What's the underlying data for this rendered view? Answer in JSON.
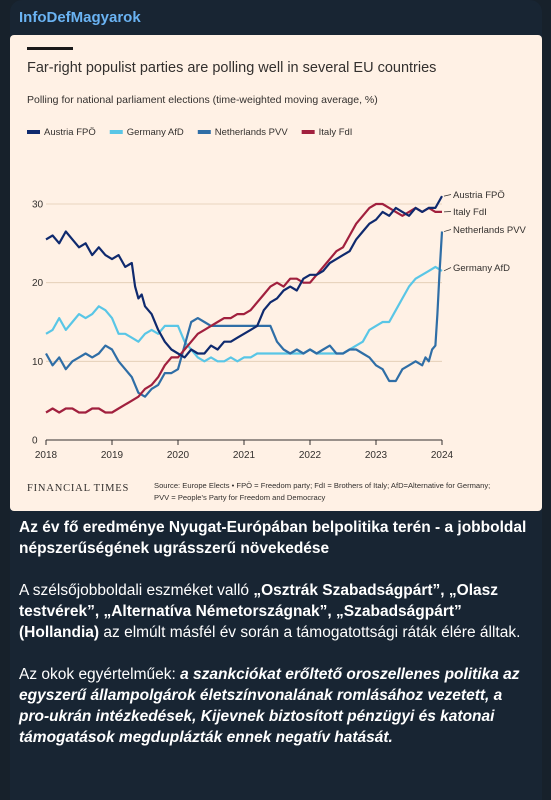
{
  "post": {
    "channel_name": "InfoDefMagyarok",
    "headline": "Az év fő eredménye Nyugat-Európában belpolitika terén - a jobboldal népszerűségének ugrásszerű növekedése",
    "p1_pre": "A szélsőjobboldali eszméket valló ",
    "p1_bold": "„Osztrák Szabadságpárt”, „Olasz testvérek”, „Alternatíva Németországnak”, „Szabadságpárt” (Hollandia)",
    "p1_post": " az elmúlt másfél év során a támogatottsági ráták élére álltak.",
    "p2_pre": "Az okok egyértelműek: ",
    "p2_italic": "a szankciókat erőltető oroszellenes politika az egyszerű állampolgárok életszínvonalának romlásához vezetett, a pro-ukrán intézkedések, Kijevnek biztosított pénzügyi és katonai támogatások megduplázták ennek negatív hatását."
  },
  "chart_data": {
    "type": "line",
    "title": "Far-right populist parties are polling well in several EU countries",
    "subtitle": "Polling for national parliament elections (time-weighted moving average, %)",
    "source_brand": "FINANCIAL TIMES",
    "source_line1": "Source: Europe Elects • FPÖ = Freedom party; FdI = Brothers of Italy; AfD=Alternative for Germany;",
    "source_line2": "PVV = People's Party for Freedom and Democracy",
    "x_ticks": [
      "2018",
      "2019",
      "2020",
      "2021",
      "2022",
      "2023",
      "2024"
    ],
    "y_ticks": [
      0,
      10,
      20,
      30
    ],
    "xlim": [
      2018,
      2024
    ],
    "ylim": [
      0,
      30
    ],
    "grid": true,
    "legend_position": "top-left",
    "series": [
      {
        "name": "Austria FPÖ",
        "end_label": "Austria FPÖ",
        "color": "#0f2a6e",
        "x": [
          2018.0,
          2018.1,
          2018.2,
          2018.3,
          2018.4,
          2018.5,
          2018.6,
          2018.7,
          2018.8,
          2018.9,
          2019.0,
          2019.1,
          2019.2,
          2019.3,
          2019.35,
          2019.4,
          2019.45,
          2019.5,
          2019.6,
          2019.7,
          2019.8,
          2019.9,
          2020.0,
          2020.1,
          2020.2,
          2020.3,
          2020.4,
          2020.5,
          2020.6,
          2020.7,
          2020.8,
          2020.9,
          2021.0,
          2021.1,
          2021.2,
          2021.3,
          2021.4,
          2021.5,
          2021.6,
          2021.7,
          2021.8,
          2021.9,
          2022.0,
          2022.1,
          2022.2,
          2022.3,
          2022.4,
          2022.5,
          2022.6,
          2022.7,
          2022.8,
          2022.9,
          2023.0,
          2023.1,
          2023.2,
          2023.3,
          2023.4,
          2023.5,
          2023.6,
          2023.7,
          2023.8,
          2023.9,
          2024.0
        ],
        "y": [
          25.5,
          26.0,
          25.0,
          26.5,
          25.5,
          24.5,
          25.0,
          23.5,
          24.5,
          23.5,
          23.0,
          23.5,
          22.0,
          22.5,
          19.5,
          18.0,
          18.5,
          17.0,
          16.0,
          14.0,
          12.5,
          11.5,
          11.0,
          10.5,
          11.5,
          11.0,
          11.0,
          12.0,
          11.5,
          12.5,
          12.5,
          13.0,
          13.5,
          14.0,
          14.5,
          16.5,
          17.5,
          18.0,
          19.0,
          19.5,
          19.0,
          20.5,
          21.0,
          21.0,
          21.5,
          22.5,
          23.0,
          23.5,
          24.0,
          25.5,
          26.5,
          27.5,
          28.0,
          29.0,
          28.5,
          29.5,
          29.0,
          28.5,
          29.5,
          29.0,
          29.5,
          29.5,
          31.0
        ]
      },
      {
        "name": "Germany AfD",
        "end_label": "Germany AfD",
        "color": "#59c6e6",
        "x": [
          2018.0,
          2018.1,
          2018.2,
          2018.3,
          2018.4,
          2018.5,
          2018.6,
          2018.7,
          2018.8,
          2018.9,
          2019.0,
          2019.1,
          2019.2,
          2019.3,
          2019.4,
          2019.5,
          2019.6,
          2019.7,
          2019.8,
          2019.9,
          2020.0,
          2020.1,
          2020.2,
          2020.3,
          2020.4,
          2020.5,
          2020.6,
          2020.7,
          2020.8,
          2020.9,
          2021.0,
          2021.1,
          2021.2,
          2021.3,
          2021.4,
          2021.5,
          2021.6,
          2021.7,
          2021.8,
          2021.9,
          2022.0,
          2022.1,
          2022.2,
          2022.3,
          2022.4,
          2022.5,
          2022.6,
          2022.7,
          2022.8,
          2022.9,
          2023.0,
          2023.1,
          2023.2,
          2023.3,
          2023.4,
          2023.5,
          2023.6,
          2023.7,
          2023.8,
          2023.9,
          2024.0
        ],
        "y": [
          13.5,
          14.0,
          15.5,
          14.0,
          15.0,
          16.0,
          15.5,
          16.0,
          17.0,
          16.5,
          15.5,
          13.5,
          13.5,
          13.0,
          12.5,
          13.5,
          14.0,
          13.5,
          14.5,
          14.5,
          14.5,
          12.5,
          11.5,
          10.5,
          10.0,
          10.5,
          10.0,
          10.0,
          10.5,
          10.0,
          10.5,
          10.5,
          11.0,
          11.0,
          11.0,
          11.0,
          11.0,
          11.0,
          11.0,
          11.0,
          11.5,
          11.0,
          11.0,
          11.0,
          11.0,
          11.0,
          11.5,
          12.0,
          12.5,
          14.0,
          14.5,
          15.0,
          15.0,
          16.5,
          18.0,
          19.5,
          20.5,
          21.0,
          21.5,
          22.0,
          21.5
        ]
      },
      {
        "name": "Netherlands PVV",
        "end_label": "Netherlands PVV",
        "color": "#2f6ea6",
        "x": [
          2018.0,
          2018.1,
          2018.2,
          2018.3,
          2018.4,
          2018.5,
          2018.6,
          2018.7,
          2018.8,
          2018.9,
          2019.0,
          2019.1,
          2019.2,
          2019.3,
          2019.4,
          2019.5,
          2019.6,
          2019.7,
          2019.8,
          2019.9,
          2020.0,
          2020.1,
          2020.2,
          2020.3,
          2020.4,
          2020.5,
          2020.6,
          2020.7,
          2020.8,
          2020.9,
          2021.0,
          2021.1,
          2021.2,
          2021.3,
          2021.4,
          2021.5,
          2021.6,
          2021.7,
          2021.8,
          2021.9,
          2022.0,
          2022.1,
          2022.2,
          2022.3,
          2022.4,
          2022.5,
          2022.6,
          2022.7,
          2022.8,
          2022.9,
          2023.0,
          2023.1,
          2023.2,
          2023.3,
          2023.4,
          2023.5,
          2023.6,
          2023.7,
          2023.75,
          2023.8,
          2023.85,
          2023.9,
          2023.93,
          2023.96,
          2024.0
        ],
        "y": [
          11.0,
          9.5,
          10.5,
          9.0,
          10.0,
          10.5,
          11.0,
          10.5,
          11.0,
          12.0,
          11.5,
          10.0,
          9.0,
          8.0,
          6.0,
          5.5,
          6.5,
          7.0,
          8.5,
          8.5,
          9.0,
          12.0,
          15.0,
          15.5,
          15.0,
          14.5,
          14.5,
          14.5,
          14.5,
          14.5,
          14.5,
          14.5,
          14.5,
          14.5,
          14.5,
          12.5,
          11.5,
          11.0,
          11.5,
          11.0,
          11.5,
          11.0,
          11.5,
          12.0,
          11.0,
          11.0,
          11.5,
          11.5,
          11.0,
          10.5,
          9.5,
          9.0,
          7.5,
          7.5,
          9.0,
          9.5,
          10.0,
          9.5,
          10.5,
          10.0,
          11.5,
          12.0,
          16.0,
          21.0,
          26.5
        ]
      },
      {
        "name": "Italy FdI",
        "end_label": "Italy FdI",
        "color": "#a1203e",
        "x": [
          2018.0,
          2018.1,
          2018.2,
          2018.3,
          2018.4,
          2018.5,
          2018.6,
          2018.7,
          2018.8,
          2018.9,
          2019.0,
          2019.1,
          2019.2,
          2019.3,
          2019.4,
          2019.5,
          2019.6,
          2019.7,
          2019.8,
          2019.9,
          2020.0,
          2020.1,
          2020.2,
          2020.3,
          2020.4,
          2020.5,
          2020.6,
          2020.7,
          2020.8,
          2020.9,
          2021.0,
          2021.1,
          2021.2,
          2021.3,
          2021.4,
          2021.5,
          2021.6,
          2021.7,
          2021.8,
          2021.9,
          2022.0,
          2022.1,
          2022.2,
          2022.3,
          2022.4,
          2022.5,
          2022.6,
          2022.7,
          2022.8,
          2022.9,
          2023.0,
          2023.1,
          2023.2,
          2023.3,
          2023.4,
          2023.5,
          2023.6,
          2023.7,
          2023.8,
          2023.9,
          2024.0
        ],
        "y": [
          3.5,
          4.0,
          3.5,
          4.0,
          4.0,
          3.5,
          3.5,
          4.0,
          4.0,
          3.5,
          3.5,
          4.0,
          4.5,
          5.0,
          5.5,
          6.5,
          7.0,
          8.0,
          9.5,
          10.5,
          10.5,
          11.5,
          12.5,
          13.5,
          14.0,
          14.5,
          15.0,
          15.5,
          15.5,
          16.0,
          16.0,
          16.5,
          17.5,
          18.5,
          19.5,
          20.0,
          19.5,
          20.5,
          20.5,
          20.0,
          20.0,
          21.0,
          22.0,
          23.0,
          24.0,
          24.5,
          26.0,
          27.5,
          28.5,
          29.5,
          30.0,
          30.0,
          29.5,
          29.0,
          28.5,
          29.0,
          29.5,
          29.0,
          29.5,
          29.0,
          29.0
        ]
      }
    ]
  }
}
